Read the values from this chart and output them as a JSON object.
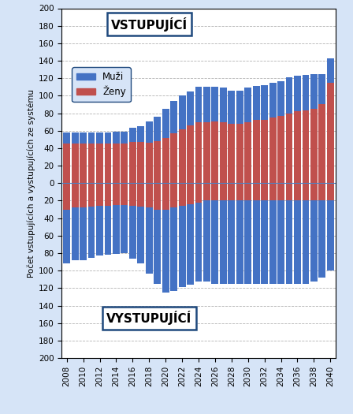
{
  "years": [
    2008,
    2009,
    2010,
    2011,
    2012,
    2013,
    2014,
    2015,
    2016,
    2017,
    2018,
    2019,
    2020,
    2021,
    2022,
    2023,
    2024,
    2025,
    2026,
    2027,
    2028,
    2029,
    2030,
    2031,
    2032,
    2033,
    2034,
    2035,
    2036,
    2037,
    2038,
    2039,
    2040
  ],
  "vstupujici_zeny": [
    45,
    45,
    45,
    45,
    45,
    45,
    45,
    45,
    47,
    47,
    46,
    48,
    52,
    57,
    62,
    66,
    70,
    70,
    71,
    70,
    68,
    68,
    70,
    72,
    72,
    75,
    77,
    80,
    82,
    83,
    85,
    90,
    115
  ],
  "vstupujici_muzi": [
    13,
    13,
    13,
    13,
    13,
    13,
    14,
    14,
    16,
    18,
    25,
    28,
    33,
    37,
    38,
    39,
    40,
    40,
    39,
    39,
    38,
    38,
    39,
    39,
    40,
    40,
    40,
    41,
    41,
    41,
    40,
    35,
    28
  ],
  "vystupujici_zeny": [
    30,
    28,
    28,
    27,
    26,
    26,
    25,
    25,
    26,
    27,
    28,
    30,
    30,
    28,
    26,
    24,
    22,
    20,
    20,
    20,
    20,
    20,
    20,
    20,
    20,
    20,
    20,
    20,
    20,
    20,
    20,
    20,
    20
  ],
  "vystupujici_muzi": [
    62,
    60,
    60,
    58,
    57,
    56,
    56,
    55,
    60,
    65,
    75,
    85,
    95,
    95,
    93,
    92,
    90,
    92,
    95,
    95,
    95,
    95,
    95,
    95,
    95,
    95,
    95,
    95,
    95,
    95,
    92,
    88,
    80
  ],
  "color_muzi": "#4472C4",
  "color_zeny": "#C0504D",
  "background_outer": "#D6E4F7",
  "background_plot": "#FFFFFF",
  "ylabel": "Počet vstupujících a vystupujících ze systému",
  "label_vstupujici": "VSTUPUJÍCÍ",
  "label_vystupujici": "VYSTUPUJÍCÍ",
  "legend_muzi": "Muži",
  "legend_zeny": "Ženy",
  "ylim_min": -200,
  "ylim_max": 200,
  "ytick_step": 20
}
